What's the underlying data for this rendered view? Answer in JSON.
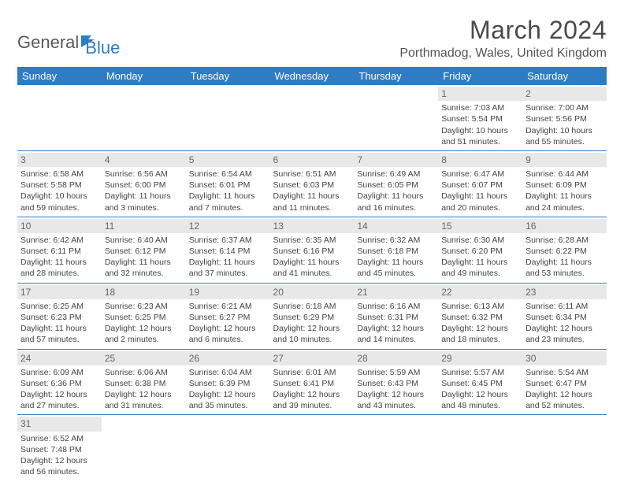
{
  "brand": {
    "part1": "General",
    "part2": "Blue"
  },
  "title": "March 2024",
  "location": "Porthmadog, Wales, United Kingdom",
  "day_headers": [
    "Sunday",
    "Monday",
    "Tuesday",
    "Wednesday",
    "Thursday",
    "Friday",
    "Saturday"
  ],
  "colors": {
    "header_bg": "#2e7cc4",
    "header_text": "#ffffff",
    "daynum_bg": "#e8e8e8",
    "border": "#2e7cc4"
  },
  "weeks": [
    [
      {
        "empty": true
      },
      {
        "empty": true
      },
      {
        "empty": true
      },
      {
        "empty": true
      },
      {
        "empty": true
      },
      {
        "day": "1",
        "sunrise": "Sunrise: 7:03 AM",
        "sunset": "Sunset: 5:54 PM",
        "daylight1": "Daylight: 10 hours",
        "daylight2": "and 51 minutes."
      },
      {
        "day": "2",
        "sunrise": "Sunrise: 7:00 AM",
        "sunset": "Sunset: 5:56 PM",
        "daylight1": "Daylight: 10 hours",
        "daylight2": "and 55 minutes."
      }
    ],
    [
      {
        "day": "3",
        "sunrise": "Sunrise: 6:58 AM",
        "sunset": "Sunset: 5:58 PM",
        "daylight1": "Daylight: 10 hours",
        "daylight2": "and 59 minutes."
      },
      {
        "day": "4",
        "sunrise": "Sunrise: 6:56 AM",
        "sunset": "Sunset: 6:00 PM",
        "daylight1": "Daylight: 11 hours",
        "daylight2": "and 3 minutes."
      },
      {
        "day": "5",
        "sunrise": "Sunrise: 6:54 AM",
        "sunset": "Sunset: 6:01 PM",
        "daylight1": "Daylight: 11 hours",
        "daylight2": "and 7 minutes."
      },
      {
        "day": "6",
        "sunrise": "Sunrise: 6:51 AM",
        "sunset": "Sunset: 6:03 PM",
        "daylight1": "Daylight: 11 hours",
        "daylight2": "and 11 minutes."
      },
      {
        "day": "7",
        "sunrise": "Sunrise: 6:49 AM",
        "sunset": "Sunset: 6:05 PM",
        "daylight1": "Daylight: 11 hours",
        "daylight2": "and 16 minutes."
      },
      {
        "day": "8",
        "sunrise": "Sunrise: 6:47 AM",
        "sunset": "Sunset: 6:07 PM",
        "daylight1": "Daylight: 11 hours",
        "daylight2": "and 20 minutes."
      },
      {
        "day": "9",
        "sunrise": "Sunrise: 6:44 AM",
        "sunset": "Sunset: 6:09 PM",
        "daylight1": "Daylight: 11 hours",
        "daylight2": "and 24 minutes."
      }
    ],
    [
      {
        "day": "10",
        "sunrise": "Sunrise: 6:42 AM",
        "sunset": "Sunset: 6:11 PM",
        "daylight1": "Daylight: 11 hours",
        "daylight2": "and 28 minutes."
      },
      {
        "day": "11",
        "sunrise": "Sunrise: 6:40 AM",
        "sunset": "Sunset: 6:12 PM",
        "daylight1": "Daylight: 11 hours",
        "daylight2": "and 32 minutes."
      },
      {
        "day": "12",
        "sunrise": "Sunrise: 6:37 AM",
        "sunset": "Sunset: 6:14 PM",
        "daylight1": "Daylight: 11 hours",
        "daylight2": "and 37 minutes."
      },
      {
        "day": "13",
        "sunrise": "Sunrise: 6:35 AM",
        "sunset": "Sunset: 6:16 PM",
        "daylight1": "Daylight: 11 hours",
        "daylight2": "and 41 minutes."
      },
      {
        "day": "14",
        "sunrise": "Sunrise: 6:32 AM",
        "sunset": "Sunset: 6:18 PM",
        "daylight1": "Daylight: 11 hours",
        "daylight2": "and 45 minutes."
      },
      {
        "day": "15",
        "sunrise": "Sunrise: 6:30 AM",
        "sunset": "Sunset: 6:20 PM",
        "daylight1": "Daylight: 11 hours",
        "daylight2": "and 49 minutes."
      },
      {
        "day": "16",
        "sunrise": "Sunrise: 6:28 AM",
        "sunset": "Sunset: 6:22 PM",
        "daylight1": "Daylight: 11 hours",
        "daylight2": "and 53 minutes."
      }
    ],
    [
      {
        "day": "17",
        "sunrise": "Sunrise: 6:25 AM",
        "sunset": "Sunset: 6:23 PM",
        "daylight1": "Daylight: 11 hours",
        "daylight2": "and 57 minutes."
      },
      {
        "day": "18",
        "sunrise": "Sunrise: 6:23 AM",
        "sunset": "Sunset: 6:25 PM",
        "daylight1": "Daylight: 12 hours",
        "daylight2": "and 2 minutes."
      },
      {
        "day": "19",
        "sunrise": "Sunrise: 6:21 AM",
        "sunset": "Sunset: 6:27 PM",
        "daylight1": "Daylight: 12 hours",
        "daylight2": "and 6 minutes."
      },
      {
        "day": "20",
        "sunrise": "Sunrise: 6:18 AM",
        "sunset": "Sunset: 6:29 PM",
        "daylight1": "Daylight: 12 hours",
        "daylight2": "and 10 minutes."
      },
      {
        "day": "21",
        "sunrise": "Sunrise: 6:16 AM",
        "sunset": "Sunset: 6:31 PM",
        "daylight1": "Daylight: 12 hours",
        "daylight2": "and 14 minutes."
      },
      {
        "day": "22",
        "sunrise": "Sunrise: 6:13 AM",
        "sunset": "Sunset: 6:32 PM",
        "daylight1": "Daylight: 12 hours",
        "daylight2": "and 18 minutes."
      },
      {
        "day": "23",
        "sunrise": "Sunrise: 6:11 AM",
        "sunset": "Sunset: 6:34 PM",
        "daylight1": "Daylight: 12 hours",
        "daylight2": "and 23 minutes."
      }
    ],
    [
      {
        "day": "24",
        "sunrise": "Sunrise: 6:09 AM",
        "sunset": "Sunset: 6:36 PM",
        "daylight1": "Daylight: 12 hours",
        "daylight2": "and 27 minutes."
      },
      {
        "day": "25",
        "sunrise": "Sunrise: 6:06 AM",
        "sunset": "Sunset: 6:38 PM",
        "daylight1": "Daylight: 12 hours",
        "daylight2": "and 31 minutes."
      },
      {
        "day": "26",
        "sunrise": "Sunrise: 6:04 AM",
        "sunset": "Sunset: 6:39 PM",
        "daylight1": "Daylight: 12 hours",
        "daylight2": "and 35 minutes."
      },
      {
        "day": "27",
        "sunrise": "Sunrise: 6:01 AM",
        "sunset": "Sunset: 6:41 PM",
        "daylight1": "Daylight: 12 hours",
        "daylight2": "and 39 minutes."
      },
      {
        "day": "28",
        "sunrise": "Sunrise: 5:59 AM",
        "sunset": "Sunset: 6:43 PM",
        "daylight1": "Daylight: 12 hours",
        "daylight2": "and 43 minutes."
      },
      {
        "day": "29",
        "sunrise": "Sunrise: 5:57 AM",
        "sunset": "Sunset: 6:45 PM",
        "daylight1": "Daylight: 12 hours",
        "daylight2": "and 48 minutes."
      },
      {
        "day": "30",
        "sunrise": "Sunrise: 5:54 AM",
        "sunset": "Sunset: 6:47 PM",
        "daylight1": "Daylight: 12 hours",
        "daylight2": "and 52 minutes."
      }
    ],
    [
      {
        "day": "31",
        "sunrise": "Sunrise: 6:52 AM",
        "sunset": "Sunset: 7:48 PM",
        "daylight1": "Daylight: 12 hours",
        "daylight2": "and 56 minutes."
      },
      {
        "empty": true
      },
      {
        "empty": true
      },
      {
        "empty": true
      },
      {
        "empty": true
      },
      {
        "empty": true
      },
      {
        "empty": true
      }
    ]
  ]
}
